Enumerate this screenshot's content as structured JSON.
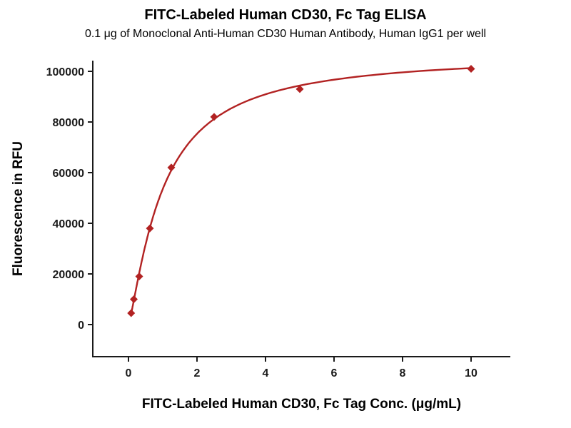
{
  "page": {
    "background": "#ffffff"
  },
  "chart_data": {
    "type": "scatter",
    "title": "FITC-Labeled Human CD30, Fc Tag ELISA",
    "subtitle": "0.1 μg of Monoclonal Anti-Human CD30 Human Antibody, Human IgG1 per well",
    "xlabel": "FITC-Labeled Human CD30, Fc Tag Conc. (μg/mL)",
    "ylabel": "Fluorescence in RFU",
    "x": [
      0.078,
      0.156,
      0.313,
      0.625,
      1.25,
      2.5,
      5,
      10
    ],
    "y": [
      4500,
      10000,
      19000,
      38000,
      62000,
      82000,
      93000,
      101000
    ],
    "x_ticks": [
      0,
      2,
      4,
      6,
      8,
      10
    ],
    "y_ticks": [
      0,
      20000,
      40000,
      60000,
      80000,
      100000
    ],
    "xlim": [
      -1.05,
      11.15
    ],
    "ylim": [
      -12700,
      104200
    ],
    "grid": false,
    "legend": null,
    "marker": "diamond",
    "line_color": "#b22222",
    "marker_color": "#b22222",
    "axis_color": "#1a1a1a",
    "text_color": "#1a1a1a",
    "fit": {
      "model": "hill",
      "top": 107000,
      "ec50": 1.0,
      "hill": 1.25
    }
  }
}
